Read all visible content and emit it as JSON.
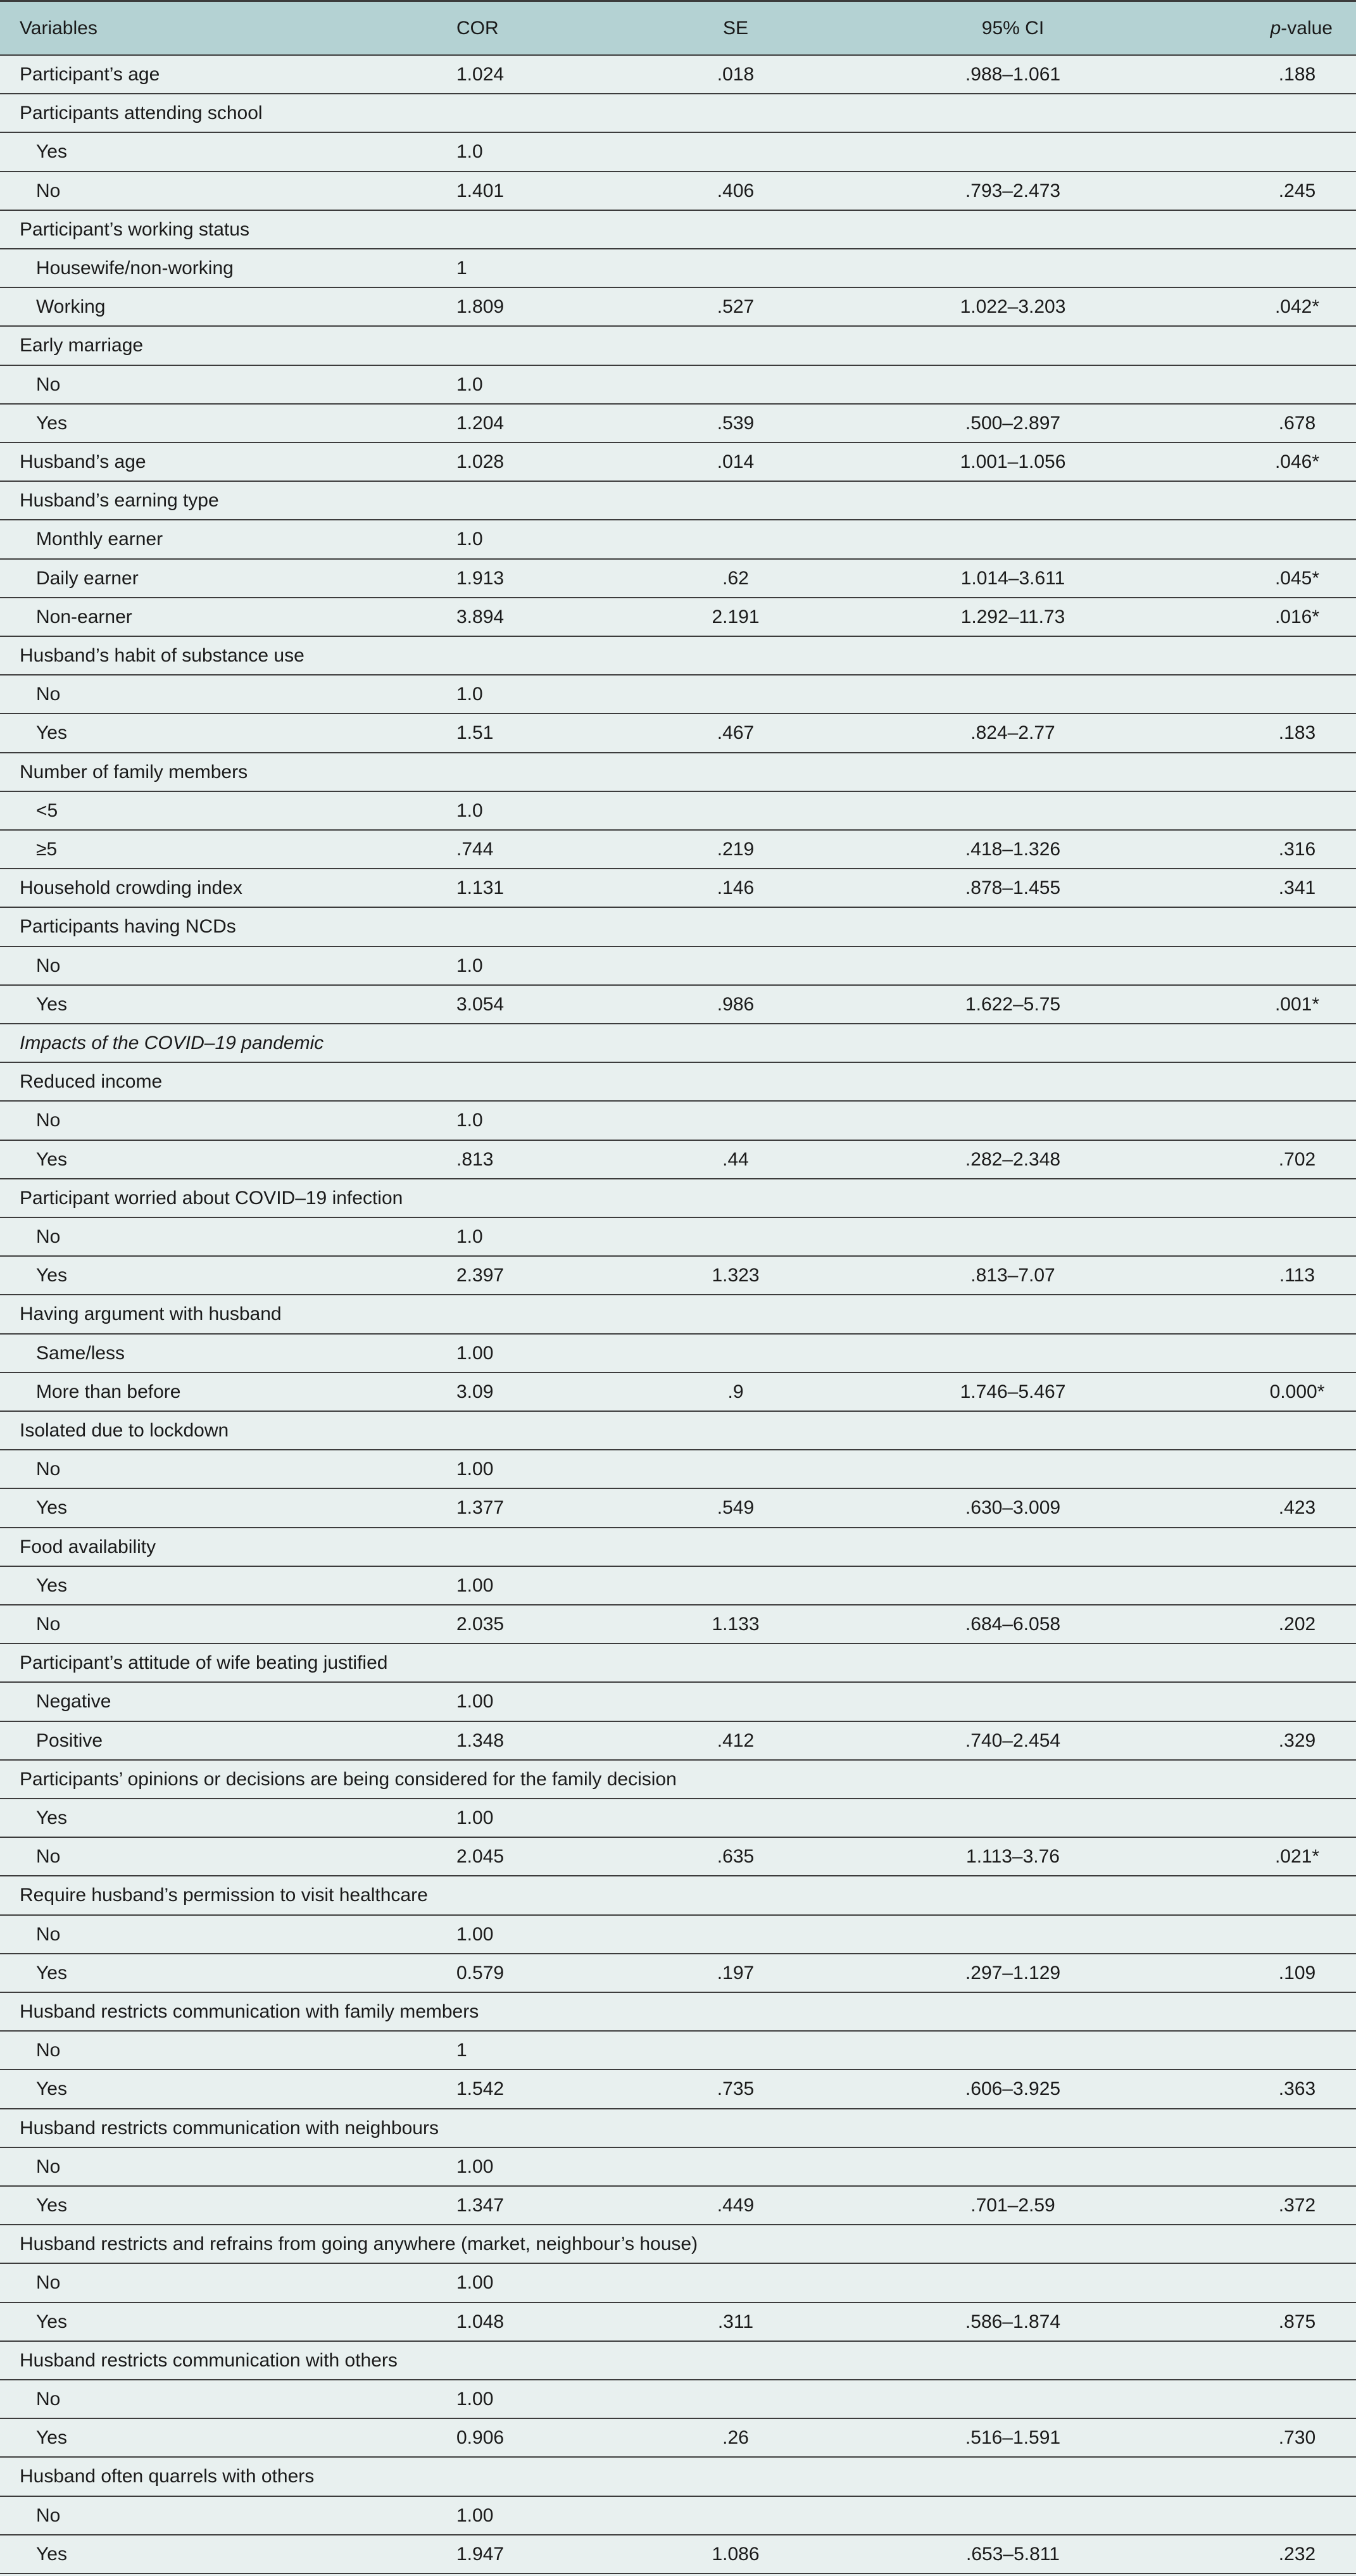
{
  "table": {
    "header": [
      "Variables",
      "COR",
      "SE",
      "95% CI",
      "p-value"
    ],
    "groups": [
      {
        "label": "Participant’s age",
        "cells": [
          "1.024",
          ".018",
          ".988–1.061",
          ".188"
        ]
      },
      {
        "label": "Participants attending school",
        "levels": [
          [
            "Yes",
            "1.0"
          ],
          [
            "No",
            "1.401",
            ".406",
            ".793–2.473",
            ".245"
          ]
        ]
      },
      {
        "label": "Participant’s working status",
        "levels": [
          [
            "Housewife/non-working",
            "1"
          ],
          [
            "Working",
            "1.809",
            ".527",
            "1.022–3.203",
            ".042*"
          ]
        ]
      },
      {
        "label": "Early marriage",
        "levels": [
          [
            "No",
            "1.0"
          ],
          [
            "Yes",
            "1.204",
            ".539",
            ".500–2.897",
            ".678"
          ]
        ]
      },
      {
        "label": "Husband’s age",
        "cells": [
          "1.028",
          ".014",
          "1.001–1.056",
          ".046*"
        ]
      },
      {
        "label": "Husband’s earning type",
        "levels": [
          [
            "Monthly earner",
            "1.0"
          ],
          [
            "Daily earner",
            "1.913",
            ".62",
            "1.014–3.611",
            ".045*"
          ],
          [
            "Non-earner",
            "3.894",
            "2.191",
            "1.292–11.73",
            ".016*"
          ]
        ]
      },
      {
        "label": "Husband’s habit of substance use",
        "levels": [
          [
            "No",
            "1.0"
          ],
          [
            "Yes",
            "1.51",
            ".467",
            ".824–2.77",
            ".183"
          ]
        ]
      },
      {
        "label": "Number of family members",
        "levels": [
          [
            "<5",
            "1.0"
          ],
          [
            "≥5",
            ".744",
            ".219",
            ".418–1.326",
            ".316"
          ]
        ]
      },
      {
        "label": "Household crowding index",
        "cells": [
          "1.131",
          ".146",
          ".878–1.455",
          ".341"
        ]
      },
      {
        "label": "Participants having NCDs",
        "levels": [
          [
            "No",
            "1.0"
          ],
          [
            "Yes",
            "3.054",
            ".986",
            "1.622–5.75",
            ".001*"
          ]
        ]
      },
      {
        "heading": "Impacts of the COVID–19 pandemic"
      },
      {
        "label": "Reduced income",
        "levels": [
          [
            "No",
            "1.0"
          ],
          [
            "Yes",
            ".813",
            ".44",
            ".282–2.348",
            ".702"
          ]
        ]
      },
      {
        "label": "Participant worried about COVID–19 infection",
        "levels": [
          [
            "No",
            "1.0"
          ],
          [
            "Yes",
            "2.397",
            "1.323",
            ".813–7.07",
            ".113"
          ]
        ]
      },
      {
        "label": "Having argument with husband",
        "levels": [
          [
            "Same/less",
            "1.00"
          ],
          [
            "More than before",
            "3.09",
            ".9",
            "1.746–5.467",
            "0.000*"
          ]
        ]
      },
      {
        "label": "Isolated due to lockdown",
        "levels": [
          [
            "No",
            "1.00"
          ],
          [
            "Yes",
            "1.377",
            ".549",
            ".630–3.009",
            ".423"
          ]
        ]
      },
      {
        "label": "Food availability",
        "levels": [
          [
            "Yes",
            "1.00"
          ],
          [
            "No",
            "2.035",
            "1.133",
            ".684–6.058",
            ".202"
          ]
        ]
      },
      {
        "label": "Participant’s attitude of wife beating justified",
        "levels": [
          [
            "Negative",
            "1.00"
          ],
          [
            "Positive",
            "1.348",
            ".412",
            ".740–2.454",
            ".329"
          ]
        ]
      },
      {
        "label": "Participants’ opinions or decisions are being considered for the family decision",
        "levels": [
          [
            "Yes",
            "1.00"
          ],
          [
            "No",
            "2.045",
            ".635",
            "1.113–3.76",
            ".021*"
          ]
        ]
      },
      {
        "label": "Require husband’s permission to visit healthcare",
        "levels": [
          [
            "No",
            "1.00"
          ],
          [
            "Yes",
            "0.579",
            ".197",
            ".297–1.129",
            ".109"
          ]
        ]
      },
      {
        "label": "Husband restricts communication with family members",
        "levels": [
          [
            "No",
            "1"
          ],
          [
            "Yes",
            "1.542",
            ".735",
            ".606–3.925",
            ".363"
          ]
        ]
      },
      {
        "label": "Husband restricts communication with neighbours",
        "levels": [
          [
            "No",
            "1.00"
          ],
          [
            "Yes",
            "1.347",
            ".449",
            ".701–2.59",
            ".372"
          ]
        ]
      },
      {
        "label": "Husband restricts and refrains from going anywhere (market, neighbour’s house)",
        "levels": [
          [
            "No",
            "1.00"
          ],
          [
            "Yes",
            "1.048",
            ".311",
            ".586–1.874",
            ".875"
          ]
        ]
      },
      {
        "label": "Husband restricts communication with others",
        "levels": [
          [
            "No",
            "1.00"
          ],
          [
            "Yes",
            "0.906",
            ".26",
            ".516–1.591",
            ".730"
          ]
        ]
      },
      {
        "label": "Husband often quarrels with others",
        "levels": [
          [
            "No",
            "1.00"
          ],
          [
            "Yes",
            "1.947",
            "1.086",
            ".653–5.811",
            ".232"
          ]
        ]
      }
    ]
  }
}
